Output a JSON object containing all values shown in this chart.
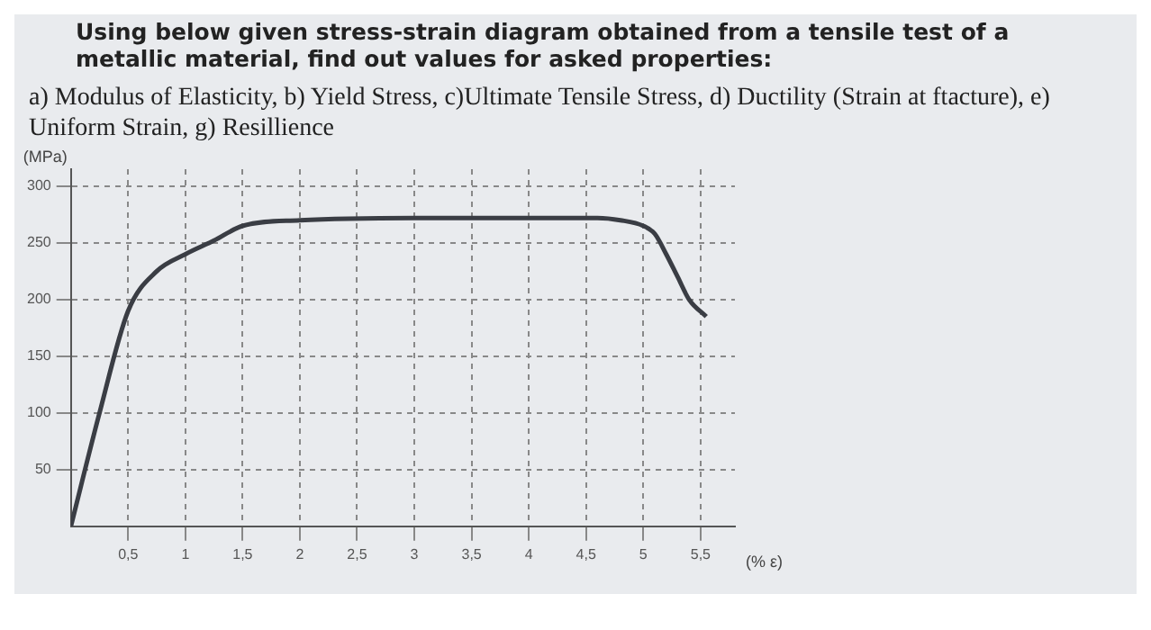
{
  "chart_data": {
    "type": "line",
    "title": "Using below given stress-strain diagram obtained from a tensile test of a metallic material, find out values for asked properties:",
    "subtitle": "a) Modulus of Elasticity,   b) Yield Stress,   c)Ultimate Tensile Stress,   d) Ductility (Strain at ftacture), e) Uniform Strain, g) Resillience",
    "xlabel": "(% ε)",
    "ylabel": "(MPa)",
    "x": [
      0,
      0.25,
      0.5,
      0.75,
      1,
      1.25,
      1.5,
      2,
      3,
      4,
      4.6,
      4.8,
      5,
      5.1,
      5.2,
      5.3,
      5.4,
      5.55
    ],
    "series": [
      {
        "color": "#3a3d44",
        "values": [
          0,
          100,
          190,
          225,
          240,
          252,
          265,
          270,
          272,
          272,
          272,
          270,
          265,
          258,
          240,
          220,
          200,
          185
        ]
      }
    ],
    "xlim": [
      0,
      5.8
    ],
    "ylim": [
      0,
      315
    ],
    "xticks": [
      {
        "value": 0.5,
        "label": "0,5"
      },
      1,
      {
        "value": 1.5,
        "label": "1,5"
      },
      2,
      {
        "value": 2.5,
        "label": "2,5"
      },
      3,
      {
        "value": 3.5,
        "label": "3,5"
      },
      4,
      {
        "value": 4.5,
        "label": "4,5"
      },
      5,
      {
        "value": 5.5,
        "label": "5,5"
      }
    ],
    "yticks": [
      50,
      100,
      150,
      200,
      250,
      300
    ],
    "grid": true,
    "legend": false,
    "marker": "none",
    "line_style": "solid"
  }
}
